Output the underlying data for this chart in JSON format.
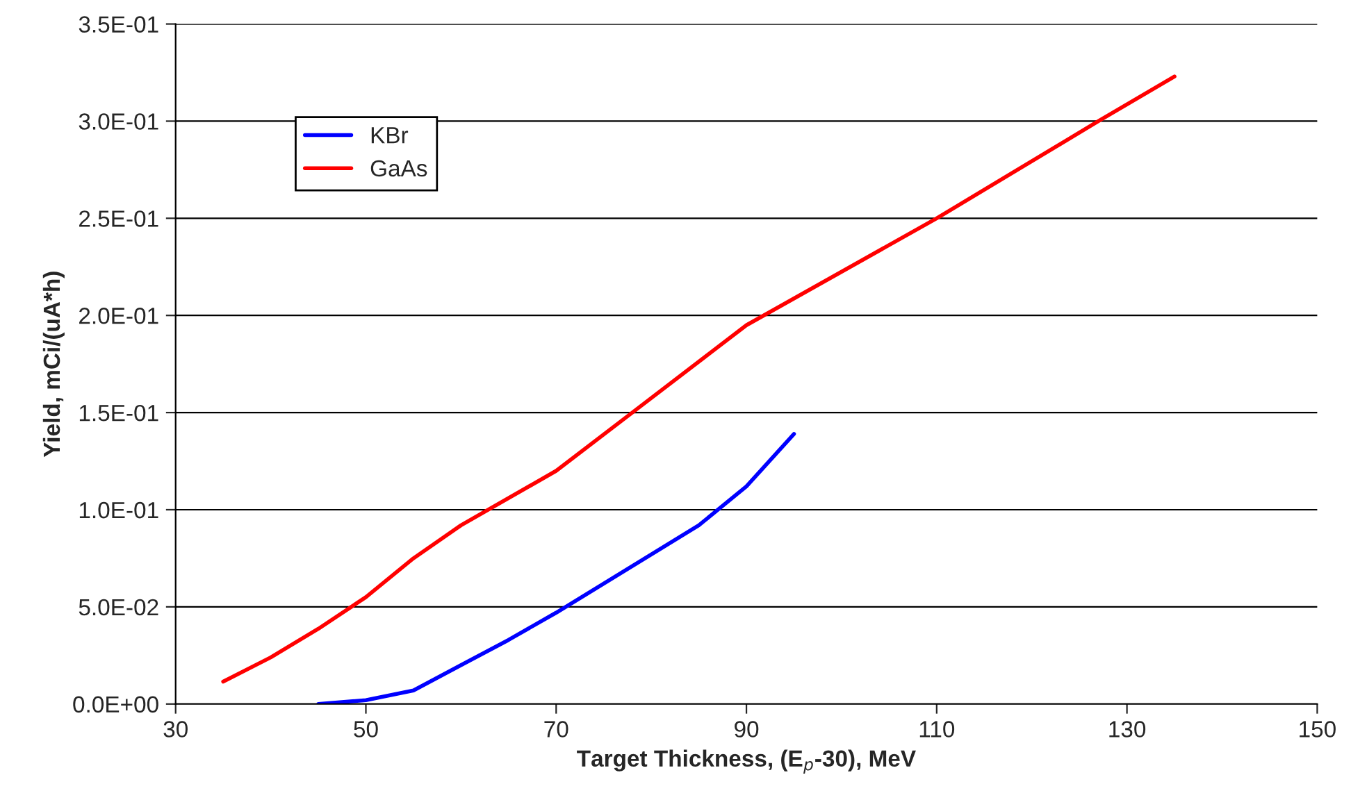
{
  "chart_data": {
    "type": "line",
    "xlabel": "Target Thickness, (E$_{p}$-30), MeV",
    "ylabel": "Yield, mCi/(uA*h)",
    "xlim": [
      30,
      150
    ],
    "xticks": [
      30,
      50,
      70,
      90,
      110,
      130,
      150
    ],
    "ylim": [
      0,
      0.35
    ],
    "yticks": [
      {
        "value": 0,
        "label": "0.0E+00"
      },
      {
        "value": 0.05,
        "label": "5.0E-02"
      },
      {
        "value": 0.1,
        "label": "1.0E-01"
      },
      {
        "value": 0.15,
        "label": "1.5E-01"
      },
      {
        "value": 0.2,
        "label": "2.0E-01"
      },
      {
        "value": 0.25,
        "label": "2.5E-01"
      },
      {
        "value": 0.3,
        "label": "3.0E-01"
      },
      {
        "value": 0.35,
        "label": "3.5E-01"
      }
    ],
    "grid": "y",
    "legend": "top left",
    "marker": "none",
    "line_style": "solid",
    "series": [
      {
        "name": "KBr",
        "color": "#0000ff",
        "x": [
          45,
          50,
          55,
          60,
          65,
          70,
          75,
          80,
          85,
          90,
          95
        ],
        "values": [
          0,
          0.002,
          0.007,
          0.02,
          0.033,
          0.047,
          0.062,
          0.077,
          0.092,
          0.112,
          0.139
        ]
      },
      {
        "name": "GaAs",
        "color": "#ff0000",
        "x": [
          35,
          40,
          45,
          50,
          55,
          60,
          70,
          78,
          90,
          110,
          127,
          135
        ],
        "values": [
          0.0115,
          0.024,
          0.0387,
          0.055,
          0.075,
          0.092,
          0.12,
          0.15,
          0.195,
          0.25,
          0.3,
          0.323
        ]
      }
    ]
  }
}
